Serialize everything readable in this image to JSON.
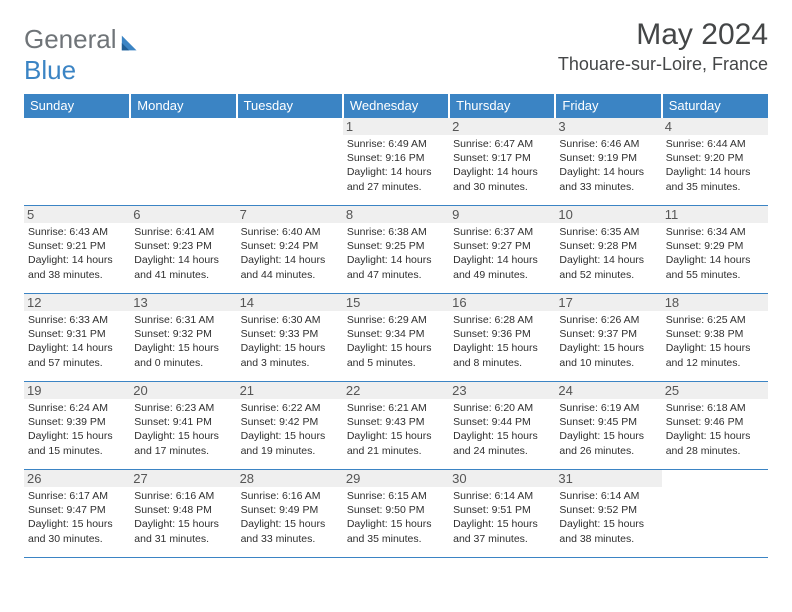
{
  "logo": {
    "word1": "General",
    "word2": "Blue"
  },
  "title": "May 2024",
  "location": "Thouare-sur-Loire, France",
  "colors": {
    "header_bg": "#3b84c4",
    "header_text": "#ffffff",
    "daynum_bg": "#efefef",
    "border": "#3b84c4",
    "logo_gray": "#6f7478",
    "logo_blue": "#3b84c4",
    "text": "#2f2f2f"
  },
  "weekdays": [
    "Sunday",
    "Monday",
    "Tuesday",
    "Wednesday",
    "Thursday",
    "Friday",
    "Saturday"
  ],
  "weeks": [
    [
      null,
      null,
      null,
      {
        "n": "1",
        "sunrise": "6:49 AM",
        "sunset": "9:16 PM",
        "daylight": "14 hours and 27 minutes."
      },
      {
        "n": "2",
        "sunrise": "6:47 AM",
        "sunset": "9:17 PM",
        "daylight": "14 hours and 30 minutes."
      },
      {
        "n": "3",
        "sunrise": "6:46 AM",
        "sunset": "9:19 PM",
        "daylight": "14 hours and 33 minutes."
      },
      {
        "n": "4",
        "sunrise": "6:44 AM",
        "sunset": "9:20 PM",
        "daylight": "14 hours and 35 minutes."
      }
    ],
    [
      {
        "n": "5",
        "sunrise": "6:43 AM",
        "sunset": "9:21 PM",
        "daylight": "14 hours and 38 minutes."
      },
      {
        "n": "6",
        "sunrise": "6:41 AM",
        "sunset": "9:23 PM",
        "daylight": "14 hours and 41 minutes."
      },
      {
        "n": "7",
        "sunrise": "6:40 AM",
        "sunset": "9:24 PM",
        "daylight": "14 hours and 44 minutes."
      },
      {
        "n": "8",
        "sunrise": "6:38 AM",
        "sunset": "9:25 PM",
        "daylight": "14 hours and 47 minutes."
      },
      {
        "n": "9",
        "sunrise": "6:37 AM",
        "sunset": "9:27 PM",
        "daylight": "14 hours and 49 minutes."
      },
      {
        "n": "10",
        "sunrise": "6:35 AM",
        "sunset": "9:28 PM",
        "daylight": "14 hours and 52 minutes."
      },
      {
        "n": "11",
        "sunrise": "6:34 AM",
        "sunset": "9:29 PM",
        "daylight": "14 hours and 55 minutes."
      }
    ],
    [
      {
        "n": "12",
        "sunrise": "6:33 AM",
        "sunset": "9:31 PM",
        "daylight": "14 hours and 57 minutes."
      },
      {
        "n": "13",
        "sunrise": "6:31 AM",
        "sunset": "9:32 PM",
        "daylight": "15 hours and 0 minutes."
      },
      {
        "n": "14",
        "sunrise": "6:30 AM",
        "sunset": "9:33 PM",
        "daylight": "15 hours and 3 minutes."
      },
      {
        "n": "15",
        "sunrise": "6:29 AM",
        "sunset": "9:34 PM",
        "daylight": "15 hours and 5 minutes."
      },
      {
        "n": "16",
        "sunrise": "6:28 AM",
        "sunset": "9:36 PM",
        "daylight": "15 hours and 8 minutes."
      },
      {
        "n": "17",
        "sunrise": "6:26 AM",
        "sunset": "9:37 PM",
        "daylight": "15 hours and 10 minutes."
      },
      {
        "n": "18",
        "sunrise": "6:25 AM",
        "sunset": "9:38 PM",
        "daylight": "15 hours and 12 minutes."
      }
    ],
    [
      {
        "n": "19",
        "sunrise": "6:24 AM",
        "sunset": "9:39 PM",
        "daylight": "15 hours and 15 minutes."
      },
      {
        "n": "20",
        "sunrise": "6:23 AM",
        "sunset": "9:41 PM",
        "daylight": "15 hours and 17 minutes."
      },
      {
        "n": "21",
        "sunrise": "6:22 AM",
        "sunset": "9:42 PM",
        "daylight": "15 hours and 19 minutes."
      },
      {
        "n": "22",
        "sunrise": "6:21 AM",
        "sunset": "9:43 PM",
        "daylight": "15 hours and 21 minutes."
      },
      {
        "n": "23",
        "sunrise": "6:20 AM",
        "sunset": "9:44 PM",
        "daylight": "15 hours and 24 minutes."
      },
      {
        "n": "24",
        "sunrise": "6:19 AM",
        "sunset": "9:45 PM",
        "daylight": "15 hours and 26 minutes."
      },
      {
        "n": "25",
        "sunrise": "6:18 AM",
        "sunset": "9:46 PM",
        "daylight": "15 hours and 28 minutes."
      }
    ],
    [
      {
        "n": "26",
        "sunrise": "6:17 AM",
        "sunset": "9:47 PM",
        "daylight": "15 hours and 30 minutes."
      },
      {
        "n": "27",
        "sunrise": "6:16 AM",
        "sunset": "9:48 PM",
        "daylight": "15 hours and 31 minutes."
      },
      {
        "n": "28",
        "sunrise": "6:16 AM",
        "sunset": "9:49 PM",
        "daylight": "15 hours and 33 minutes."
      },
      {
        "n": "29",
        "sunrise": "6:15 AM",
        "sunset": "9:50 PM",
        "daylight": "15 hours and 35 minutes."
      },
      {
        "n": "30",
        "sunrise": "6:14 AM",
        "sunset": "9:51 PM",
        "daylight": "15 hours and 37 minutes."
      },
      {
        "n": "31",
        "sunrise": "6:14 AM",
        "sunset": "9:52 PM",
        "daylight": "15 hours and 38 minutes."
      },
      null
    ]
  ],
  "labels": {
    "sunrise": "Sunrise:",
    "sunset": "Sunset:",
    "daylight": "Daylight:"
  }
}
